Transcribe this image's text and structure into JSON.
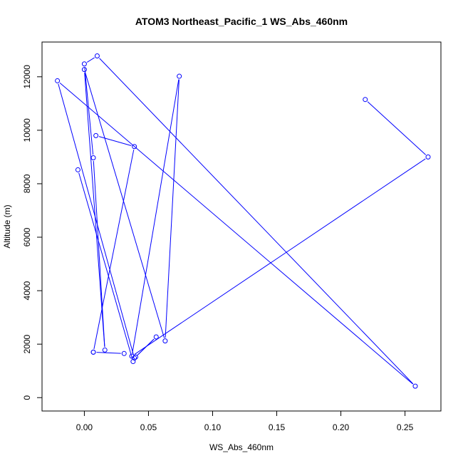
{
  "chart_data": {
    "type": "line",
    "title": "ATOM3 Northeast_Pacific_1 WS_Abs_460nm",
    "xlabel": "WS_Abs_460nm",
    "ylabel": "Altitude (m)",
    "xlim": [
      -0.033,
      0.278
    ],
    "ylim": [
      -500,
      13300
    ],
    "xticks": [
      0.0,
      0.05,
      0.1,
      0.15,
      0.2,
      0.25
    ],
    "xtick_labels": [
      "0.00",
      "0.05",
      "0.10",
      "0.15",
      "0.20",
      "0.25"
    ],
    "yticks": [
      0,
      2000,
      4000,
      6000,
      8000,
      10000,
      12000
    ],
    "ytick_labels": [
      "0",
      "2000",
      "4000",
      "6000",
      "8000",
      "10000",
      "12000"
    ],
    "grid": false,
    "legend": "none",
    "series": [
      {
        "color": "#0000ff",
        "marker": "open-circle",
        "points": [
          {
            "x": 0.219,
            "y": 11150
          },
          {
            "x": 0.268,
            "y": 9000
          },
          {
            "x": 0.037,
            "y": 1550
          },
          {
            "x": 0.074,
            "y": 12020
          },
          {
            "x": 0.063,
            "y": 2120
          },
          {
            "x": 0.0,
            "y": 12270
          },
          {
            "x": 0.016,
            "y": 1780
          },
          {
            "x": 0.007,
            "y": 8970
          },
          {
            "x": 0.0,
            "y": 12480
          },
          {
            "x": 0.01,
            "y": 12780
          },
          {
            "x": 0.258,
            "y": 430
          },
          {
            "x": -0.021,
            "y": 11850
          },
          {
            "x": 0.039,
            "y": 1480
          },
          {
            "x": 0.056,
            "y": 2270
          },
          {
            "x": 0.04,
            "y": 1520
          },
          {
            "x": 0.038,
            "y": 1350
          },
          {
            "x": -0.005,
            "y": 8520
          }
        ]
      },
      {
        "color": "#0000ff",
        "marker": "open-circle",
        "points": [
          {
            "x": 0.007,
            "y": 1700
          },
          {
            "x": 0.039,
            "y": 9390
          },
          {
            "x": 0.009,
            "y": 9800
          }
        ]
      },
      {
        "color": "#0000ff",
        "marker": "open-circle",
        "points": [
          {
            "x": 0.007,
            "y": 1700
          },
          {
            "x": 0.031,
            "y": 1650
          }
        ]
      }
    ]
  }
}
